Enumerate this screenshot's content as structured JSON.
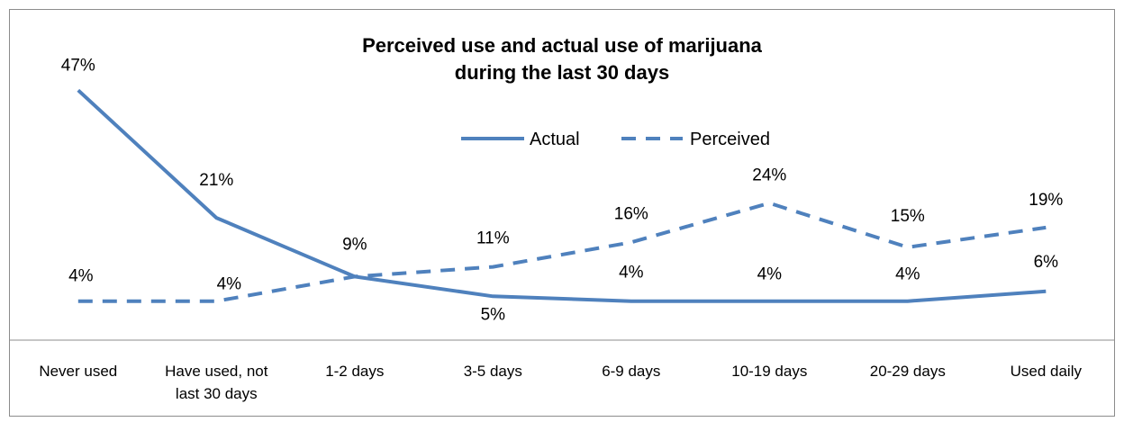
{
  "chart_data": {
    "type": "line",
    "title_lines": [
      "Perceived use and actual use of marijuana",
      "during the last 30 days"
    ],
    "categories": [
      "Never used",
      "Have used, not last 30 days",
      "1-2 days",
      "3-5 days",
      "6-9 days",
      "10-19 days",
      "20-29 days",
      "Used daily"
    ],
    "category_lines": [
      [
        "Never used"
      ],
      [
        "Have used, not",
        "last 30 days"
      ],
      [
        "1-2 days"
      ],
      [
        "3-5 days"
      ],
      [
        "6-9 days"
      ],
      [
        "10-19 days"
      ],
      [
        "20-29 days"
      ],
      [
        "Used daily"
      ]
    ],
    "series": [
      {
        "name": "Actual",
        "values": [
          47,
          21,
          9,
          5,
          4,
          4,
          4,
          6
        ],
        "labels": [
          "47%",
          "21%",
          "9%",
          "5%",
          "4%",
          "4%",
          "4%",
          "6%"
        ],
        "style": "solid"
      },
      {
        "name": "Perceived",
        "values": [
          4,
          4,
          9,
          11,
          16,
          24,
          15,
          19
        ],
        "labels": [
          "4%",
          "4%",
          "",
          "11%",
          "16%",
          "24%",
          "15%",
          "19%"
        ],
        "style": "dashed"
      }
    ],
    "ylim": [
      0,
      50
    ],
    "xlabel": "",
    "ylabel": "",
    "grid": false,
    "legend": "top-center",
    "line_color": "#4f81bd"
  }
}
